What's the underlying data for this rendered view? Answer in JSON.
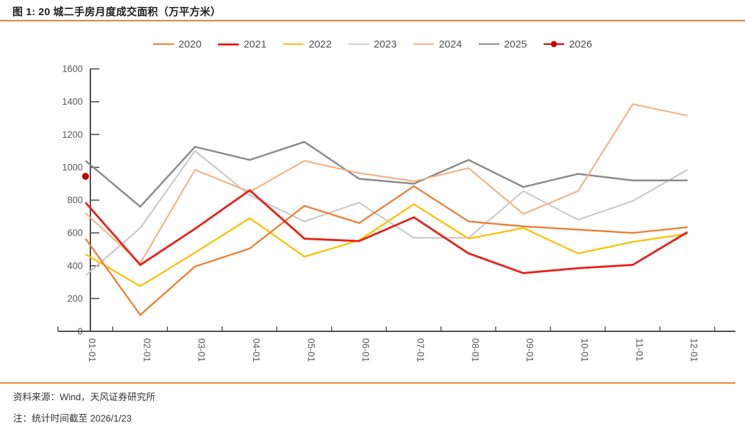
{
  "figure": {
    "title": "图 1: 20 城二手房月度成交面积（万平方米）",
    "source": "资料来源：Wind，天风证券研究所",
    "note": "注：统计时间截至 2026/1/23",
    "accent_color": "#E8802C",
    "axis_color": "#4a4a4a",
    "tick_label_color": "#595959"
  },
  "chart_data": {
    "type": "line",
    "title": "图 1: 20 城二手房月度成交面积（万平方米）",
    "categories": [
      "01-01",
      "02-01",
      "03-01",
      "04-01",
      "05-01",
      "06-01",
      "07-01",
      "08-01",
      "09-01",
      "10-01",
      "11-01",
      "12-01"
    ],
    "xlabel": "",
    "ylabel": "",
    "ylim": [
      0,
      1600
    ],
    "ytick_step": 200,
    "grid": false,
    "legend_position": "top",
    "x_label_rotation_deg": 90,
    "series": [
      {
        "name": "2020",
        "color": "#ED7D31",
        "width": 2.4,
        "values": [
          565,
          100,
          395,
          505,
          765,
          660,
          885,
          670,
          640,
          620,
          600,
          635
        ]
      },
      {
        "name": "2021",
        "color": "#E8231A",
        "width": 3.0,
        "values": [
          785,
          405,
          625,
          860,
          565,
          550,
          695,
          475,
          355,
          385,
          405,
          605
        ]
      },
      {
        "name": "2022",
        "color": "#FFC000",
        "width": 2.4,
        "values": [
          470,
          275,
          480,
          690,
          455,
          555,
          775,
          565,
          630,
          475,
          545,
          595
        ]
      },
      {
        "name": "2023",
        "color": "#C9C9C9",
        "width": 2.2,
        "values": [
          340,
          630,
          1100,
          830,
          670,
          785,
          570,
          570,
          855,
          680,
          795,
          985
        ]
      },
      {
        "name": "2024",
        "color": "#F4B183",
        "width": 2.2,
        "values": [
          720,
          415,
          985,
          850,
          1040,
          965,
          915,
          995,
          715,
          855,
          1385,
          1315
        ]
      },
      {
        "name": "2025",
        "color": "#8C8C8C",
        "width": 2.6,
        "values": [
          1040,
          760,
          1125,
          1045,
          1155,
          930,
          900,
          1045,
          880,
          960,
          920,
          920
        ]
      },
      {
        "name": "2026",
        "color": "#C00000",
        "width": 2.6,
        "marker": "circle",
        "values": [
          945,
          null,
          null,
          null,
          null,
          null,
          null,
          null,
          null,
          null,
          null,
          null
        ]
      }
    ],
    "draw_order": [
      "2023",
      "2025",
      "2024",
      "2022",
      "2020",
      "2021",
      "2026"
    ]
  }
}
